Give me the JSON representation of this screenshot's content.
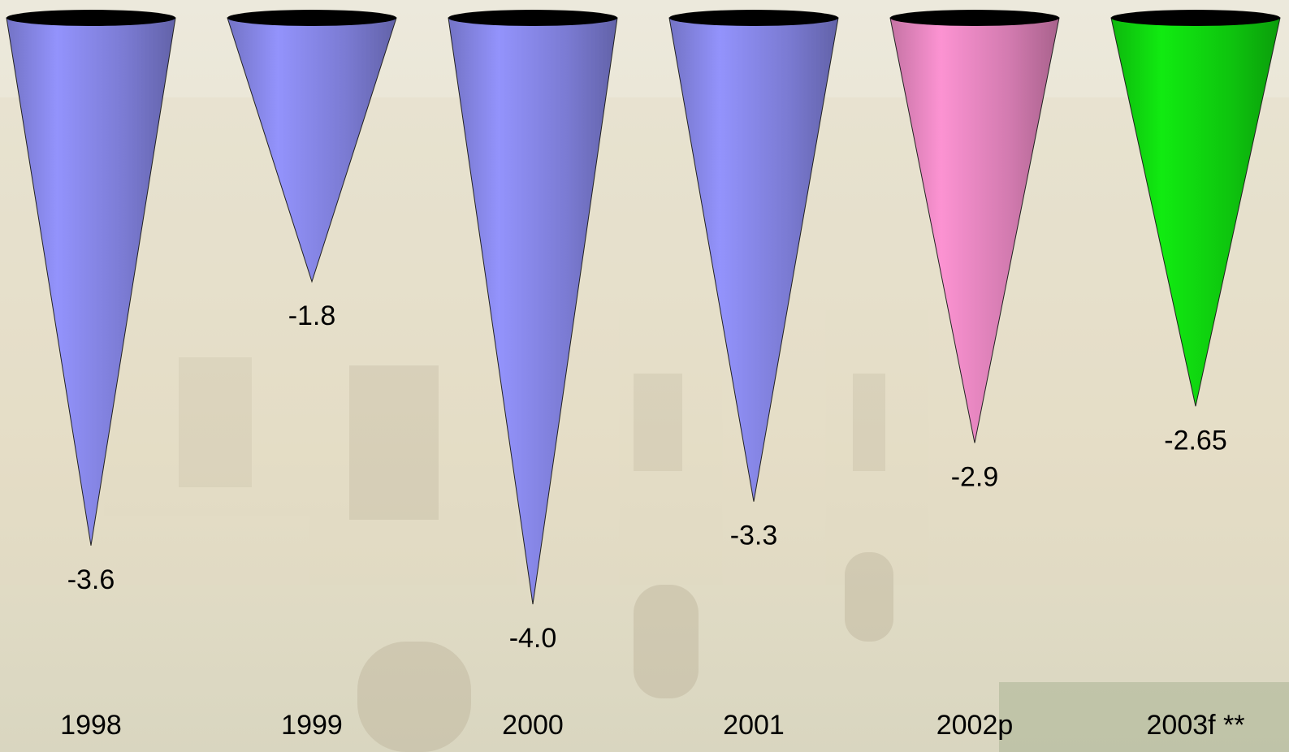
{
  "chart_data": {
    "type": "cone",
    "categories": [
      "1998",
      "1999",
      "2000",
      "2001",
      "2002p",
      "2003f **"
    ],
    "values": [
      -3.6,
      -1.8,
      -4.0,
      -3.3,
      -2.9,
      -2.65
    ],
    "value_labels": [
      "-3.6",
      "-1.8",
      "-4.0",
      "-3.3",
      "-2.9",
      "-2.65"
    ],
    "colors": [
      "#8c8cf0",
      "#8c8cf0",
      "#8c8cf0",
      "#8c8cf0",
      "#f08cc8",
      "#10e010"
    ]
  }
}
